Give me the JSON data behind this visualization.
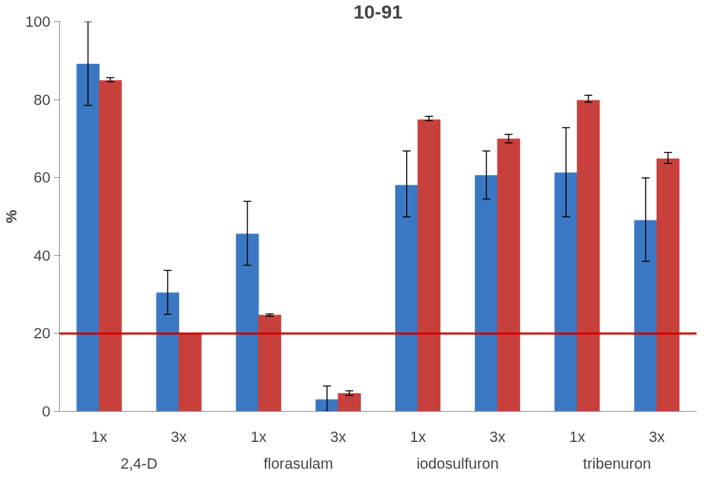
{
  "chart_data": {
    "type": "bar",
    "title": "10-91",
    "ylabel": "%",
    "categories": [
      "1x",
      "3x",
      "1x",
      "3x",
      "1x",
      "3x",
      "1x",
      "3x"
    ],
    "annotations": [
      "2,4-D",
      "florasulam",
      "iodosulfuron",
      "tribenuron"
    ],
    "series": [
      {
        "color": "#3b78c4",
        "values": [
          89.1,
          30.4,
          45.5,
          3,
          58.0,
          60.5,
          61.2,
          49.0
        ],
        "errors": [
          [
            78.5,
            100
          ],
          [
            24.9,
            36.2
          ],
          [
            37.5,
            53.9
          ],
          [
            0,
            6.5
          ],
          [
            49.9,
            66.8
          ],
          [
            54.5,
            66.8
          ],
          [
            49.9,
            72.8
          ],
          [
            38.5,
            59.9
          ]
        ]
      },
      {
        "color": "#c8403c",
        "values": [
          84.9,
          19.8,
          24.7,
          4.6,
          74.8,
          69.9,
          79.8,
          64.8
        ],
        "errors": [
          [
            84.6,
            85.6
          ],
          null,
          [
            24.4,
            25.0
          ],
          [
            4.1,
            5.3
          ],
          [
            74.6,
            75.7
          ],
          [
            68.9,
            71.1
          ],
          [
            79.3,
            81.1
          ],
          [
            63.6,
            66.4
          ]
        ]
      }
    ],
    "ylim": [
      0,
      100
    ],
    "yticks": [
      0,
      20,
      40,
      60,
      80,
      100
    ],
    "ref_lines": [
      {
        "axis": "y",
        "value": 20,
        "color": "#cc0000"
      }
    ],
    "grid": false
  }
}
